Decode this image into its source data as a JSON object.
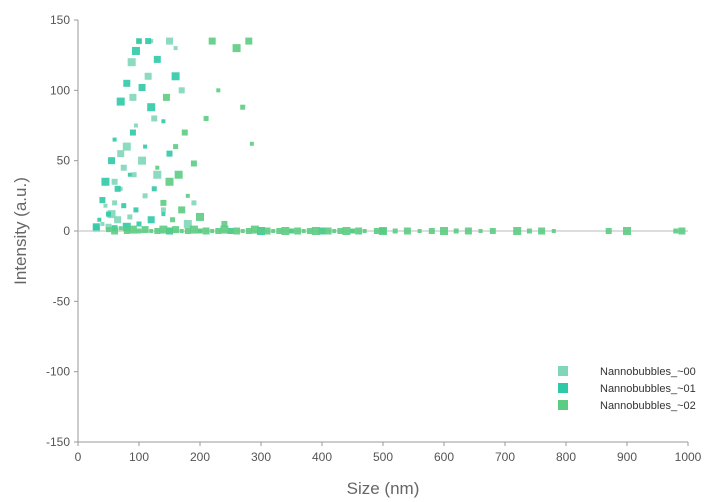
{
  "chart_data": {
    "type": "scatter",
    "xlabel": "Size (nm)",
    "ylabel": "Intensity (a.u.)",
    "xlim": [
      0,
      1000
    ],
    "ylim": [
      -150,
      150
    ],
    "xticks": [
      0,
      100,
      200,
      300,
      400,
      500,
      600,
      700,
      800,
      900,
      1000
    ],
    "yticks": [
      150,
      100,
      50,
      0,
      -50,
      -100,
      -150
    ],
    "grid": false,
    "legend_position": "bottom-right",
    "series": [
      {
        "name": "Nannobubbles_~00",
        "color": "#7fd6b8",
        "points": [
          [
            40,
            5
          ],
          [
            50,
            3
          ],
          [
            55,
            12
          ],
          [
            60,
            20
          ],
          [
            65,
            8
          ],
          [
            70,
            30
          ],
          [
            75,
            45
          ],
          [
            80,
            60
          ],
          [
            85,
            10
          ],
          [
            90,
            95
          ],
          [
            95,
            75
          ],
          [
            100,
            135
          ],
          [
            105,
            50
          ],
          [
            110,
            25
          ],
          [
            115,
            110
          ],
          [
            120,
            135
          ],
          [
            125,
            80
          ],
          [
            130,
            40
          ],
          [
            140,
            15
          ],
          [
            150,
            135
          ],
          [
            160,
            130
          ],
          [
            170,
            100
          ],
          [
            180,
            5
          ],
          [
            190,
            20
          ],
          [
            30,
            2
          ],
          [
            45,
            18
          ],
          [
            60,
            35
          ],
          [
            88,
            120
          ],
          [
            92,
            40
          ],
          [
            70,
            55
          ]
        ]
      },
      {
        "name": "Nannobubbles_~01",
        "color": "#2ec9a6",
        "points": [
          [
            30,
            3
          ],
          [
            35,
            8
          ],
          [
            40,
            22
          ],
          [
            45,
            35
          ],
          [
            50,
            12
          ],
          [
            55,
            50
          ],
          [
            60,
            65
          ],
          [
            65,
            30
          ],
          [
            70,
            92
          ],
          [
            75,
            18
          ],
          [
            80,
            105
          ],
          [
            85,
            40
          ],
          [
            90,
            70
          ],
          [
            95,
            128
          ],
          [
            100,
            135
          ],
          [
            105,
            102
          ],
          [
            110,
            60
          ],
          [
            115,
            135
          ],
          [
            120,
            88
          ],
          [
            125,
            30
          ],
          [
            130,
            122
          ],
          [
            140,
            78
          ],
          [
            150,
            55
          ],
          [
            160,
            110
          ],
          [
            100,
            5
          ],
          [
            120,
            8
          ],
          [
            140,
            12
          ],
          [
            60,
            2
          ],
          [
            80,
            3
          ],
          [
            95,
            15
          ],
          [
            150,
            0
          ],
          [
            200,
            0
          ],
          [
            250,
            0
          ],
          [
            300,
            0
          ],
          [
            350,
            0
          ],
          [
            400,
            0
          ],
          [
            450,
            0
          ],
          [
            500,
            0
          ]
        ]
      },
      {
        "name": "Nannobubbles_~02",
        "color": "#5ccc83",
        "points": [
          [
            50,
            1
          ],
          [
            60,
            0
          ],
          [
            70,
            2
          ],
          [
            80,
            0
          ],
          [
            90,
            1
          ],
          [
            100,
            0
          ],
          [
            110,
            1
          ],
          [
            120,
            0
          ],
          [
            130,
            0
          ],
          [
            140,
            1
          ],
          [
            150,
            0
          ],
          [
            160,
            1
          ],
          [
            170,
            0
          ],
          [
            180,
            0
          ],
          [
            190,
            1
          ],
          [
            200,
            0
          ],
          [
            210,
            0
          ],
          [
            220,
            0
          ],
          [
            230,
            0
          ],
          [
            240,
            1
          ],
          [
            250,
            0
          ],
          [
            260,
            0
          ],
          [
            270,
            0
          ],
          [
            280,
            0
          ],
          [
            290,
            1
          ],
          [
            300,
            0
          ],
          [
            310,
            0
          ],
          [
            320,
            0
          ],
          [
            330,
            0
          ],
          [
            340,
            0
          ],
          [
            350,
            0
          ],
          [
            360,
            0
          ],
          [
            370,
            0
          ],
          [
            380,
            0
          ],
          [
            390,
            0
          ],
          [
            400,
            0
          ],
          [
            410,
            0
          ],
          [
            420,
            0
          ],
          [
            430,
            0
          ],
          [
            440,
            0
          ],
          [
            450,
            0
          ],
          [
            460,
            0
          ],
          [
            470,
            0
          ],
          [
            490,
            0
          ],
          [
            500,
            0
          ],
          [
            520,
            0
          ],
          [
            540,
            0
          ],
          [
            560,
            0
          ],
          [
            580,
            0
          ],
          [
            600,
            0
          ],
          [
            620,
            0
          ],
          [
            640,
            0
          ],
          [
            660,
            0
          ],
          [
            680,
            0
          ],
          [
            720,
            0
          ],
          [
            740,
            0
          ],
          [
            760,
            0
          ],
          [
            780,
            0
          ],
          [
            870,
            0
          ],
          [
            900,
            0
          ],
          [
            980,
            0
          ],
          [
            990,
            0
          ],
          [
            130,
            45
          ],
          [
            140,
            20
          ],
          [
            150,
            35
          ],
          [
            160,
            60
          ],
          [
            170,
            15
          ],
          [
            180,
            25
          ],
          [
            190,
            48
          ],
          [
            200,
            10
          ],
          [
            210,
            80
          ],
          [
            220,
            135
          ],
          [
            230,
            100
          ],
          [
            240,
            5
          ],
          [
            260,
            130
          ],
          [
            270,
            88
          ],
          [
            280,
            135
          ],
          [
            285,
            62
          ],
          [
            175,
            70
          ],
          [
            165,
            40
          ],
          [
            155,
            8
          ],
          [
            145,
            95
          ]
        ]
      }
    ]
  }
}
